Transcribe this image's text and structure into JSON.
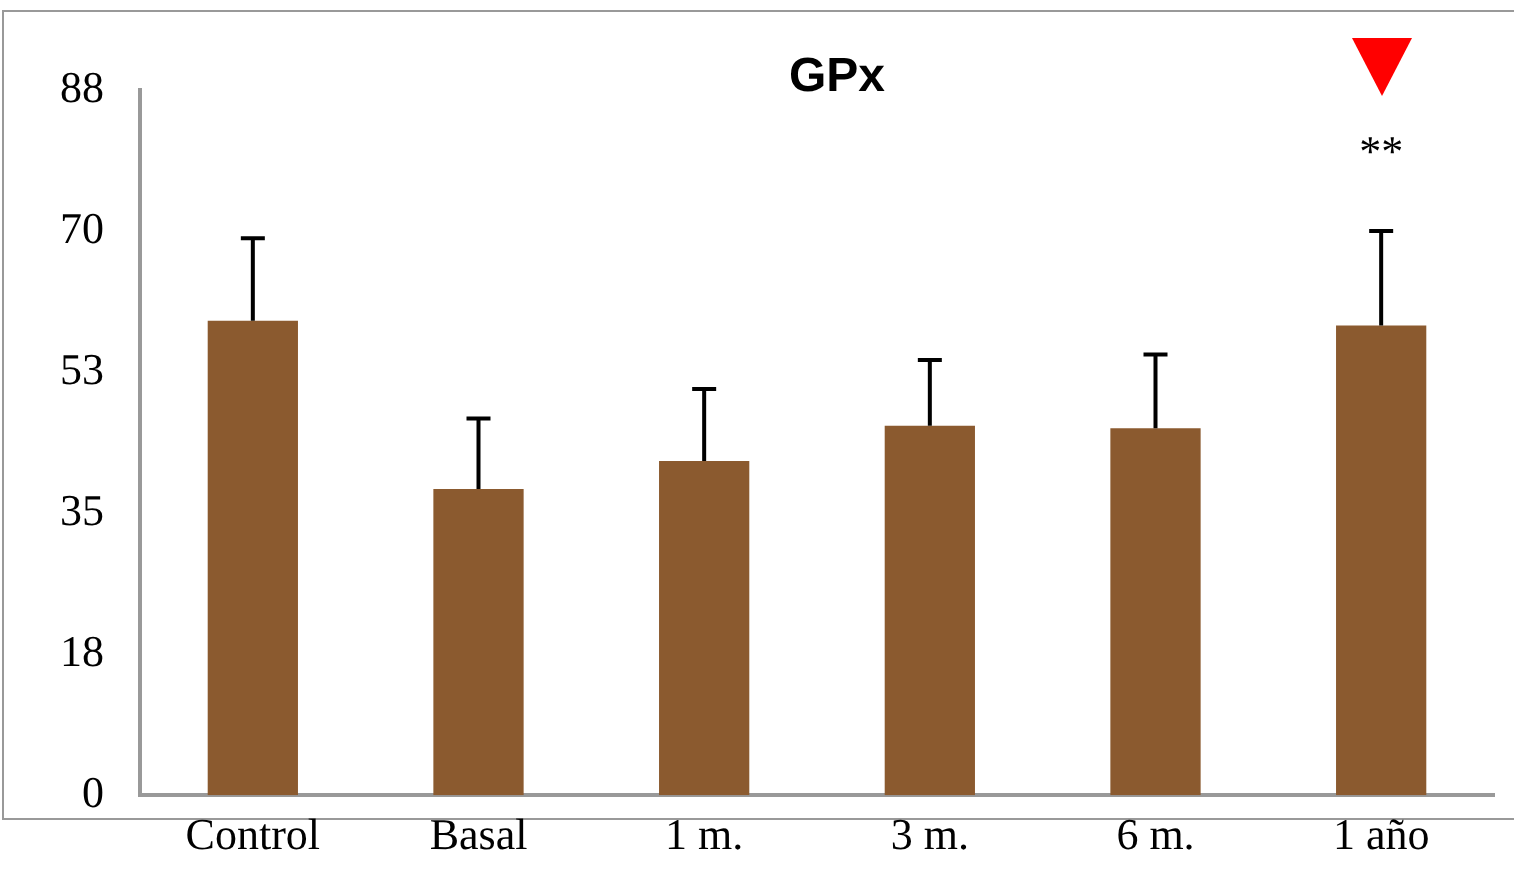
{
  "chart_data": {
    "type": "bar",
    "title": "GPx",
    "categories": [
      "Control",
      "Basal",
      "1 m.",
      "3 m.",
      "6 m.",
      "1 año"
    ],
    "values": [
      59.2,
      38.2,
      41.7,
      46.1,
      45.8,
      58.6
    ],
    "errors": [
      [
        59.2,
        69.5
      ],
      [
        38.2,
        47.0
      ],
      [
        41.7,
        50.7
      ],
      [
        46.1,
        54.3
      ],
      [
        45.8,
        55.0
      ],
      [
        58.6,
        70.4
      ]
    ],
    "color": "#8b5a2f",
    "ylim": [
      0,
      88
    ],
    "yticks": [
      {
        "value": 0,
        "label": "0"
      },
      {
        "value": 17.6,
        "label": "18"
      },
      {
        "value": 35.2,
        "label": "35"
      },
      {
        "value": 52.8,
        "label": "53"
      },
      {
        "value": 70.4,
        "label": "70"
      },
      {
        "value": 88,
        "label": "88"
      }
    ],
    "grid": false,
    "legend": false,
    "annotations": [
      "**"
    ]
  }
}
